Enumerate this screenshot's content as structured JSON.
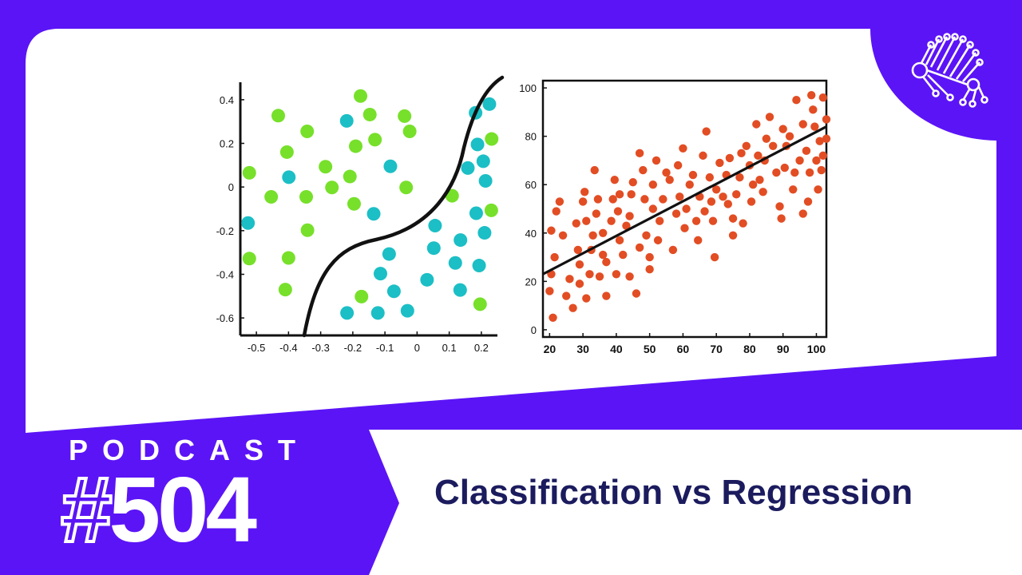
{
  "colors": {
    "brand_purple": "#5b14f6",
    "panel_white": "#ffffff",
    "title_navy": "#1b1b5e",
    "class_green": "#77e02a",
    "class_teal": "#1bbfc5",
    "regression_red": "#e24d24",
    "line_black": "#111111"
  },
  "branding": {
    "logo_icon": "neural-network-peacock-icon"
  },
  "podcast": {
    "label": "PODCAST",
    "hash": "#",
    "number": "504",
    "title": "Classification vs Regression"
  },
  "chart_data": [
    {
      "type": "scatter",
      "xlim": [
        -0.55,
        0.25
      ],
      "ylim": [
        -0.68,
        0.48
      ],
      "xticks": [
        "-0.5",
        "-0.4",
        "-0.3",
        "-0.2",
        "-0.1",
        "0",
        "0.1",
        "0.2"
      ],
      "yticks": [
        "0.4",
        "0.2",
        "0",
        "-0.2",
        "-0.4",
        "-0.6"
      ],
      "grid": false,
      "series": [
        {
          "color": "#77e02a",
          "points": [
            [
              -0.176,
              0.417
            ],
            [
              -0.147,
              0.332
            ],
            [
              -0.039,
              0.325
            ],
            [
              -0.432,
              0.327
            ],
            [
              -0.342,
              0.255
            ],
            [
              -0.023,
              0.255
            ],
            [
              -0.131,
              0.217
            ],
            [
              -0.191,
              0.187
            ],
            [
              -0.405,
              0.16
            ],
            [
              0.232,
              0.22
            ],
            [
              -0.522,
              0.065
            ],
            [
              -0.285,
              0.093
            ],
            [
              -0.209,
              0.048
            ],
            [
              -0.454,
              -0.045
            ],
            [
              -0.345,
              -0.045
            ],
            [
              -0.265,
              -0.002
            ],
            [
              -0.196,
              -0.077
            ],
            [
              -0.034,
              -0.002
            ],
            [
              0.109,
              -0.04
            ],
            [
              0.231,
              -0.107
            ],
            [
              -0.341,
              -0.198
            ],
            [
              -0.522,
              -0.328
            ],
            [
              -0.4,
              -0.325
            ],
            [
              -0.41,
              -0.47
            ],
            [
              -0.173,
              -0.502
            ],
            [
              0.196,
              -0.537
            ]
          ]
        },
        {
          "color": "#1bbfc5",
          "points": [
            [
              -0.219,
              0.303
            ],
            [
              -0.399,
              0.045
            ],
            [
              -0.083,
              0.095
            ],
            [
              -0.135,
              -0.123
            ],
            [
              0.182,
              0.34
            ],
            [
              0.225,
              0.38
            ],
            [
              0.188,
              0.195
            ],
            [
              0.206,
              0.118
            ],
            [
              0.158,
              0.087
            ],
            [
              0.213,
              0.028
            ],
            [
              -0.526,
              -0.165
            ],
            [
              0.184,
              -0.12
            ],
            [
              0.056,
              -0.177
            ],
            [
              -0.087,
              -0.307
            ],
            [
              0.135,
              -0.243
            ],
            [
              0.052,
              -0.28
            ],
            [
              0.21,
              -0.21
            ],
            [
              0.119,
              -0.348
            ],
            [
              0.193,
              -0.36
            ],
            [
              -0.114,
              -0.397
            ],
            [
              0.031,
              -0.425
            ],
            [
              -0.072,
              -0.478
            ],
            [
              0.134,
              -0.472
            ],
            [
              -0.218,
              -0.577
            ],
            [
              -0.122,
              -0.577
            ],
            [
              -0.03,
              -0.567
            ]
          ]
        }
      ]
    },
    {
      "type": "scatter",
      "xlim": [
        18,
        103
      ],
      "ylim": [
        -3,
        103
      ],
      "xticks": [
        20,
        30,
        40,
        50,
        60,
        70,
        80,
        90,
        100
      ],
      "yticks": [
        100,
        80,
        60,
        40,
        20,
        0
      ],
      "grid": false,
      "trend_line": [
        [
          18,
          23
        ],
        [
          103,
          84
        ]
      ],
      "series": [
        {
          "color": "#e24d24",
          "points": [
            [
              20.5,
              41
            ],
            [
              21.5,
              30
            ],
            [
              20.5,
              23
            ],
            [
              20,
              16
            ],
            [
              21,
              5
            ],
            [
              22,
              49
            ],
            [
              23,
              53
            ],
            [
              24,
              39
            ],
            [
              25,
              14
            ],
            [
              26,
              21
            ],
            [
              27,
              9
            ],
            [
              28,
              44
            ],
            [
              28.5,
              33
            ],
            [
              29,
              27
            ],
            [
              29,
              19
            ],
            [
              30,
              53
            ],
            [
              30.5,
              57
            ],
            [
              31,
              45
            ],
            [
              31,
              13
            ],
            [
              32,
              23
            ],
            [
              32.5,
              33
            ],
            [
              33,
              39
            ],
            [
              33.5,
              66
            ],
            [
              34,
              48
            ],
            [
              34.5,
              54
            ],
            [
              35,
              22
            ],
            [
              36,
              31
            ],
            [
              36,
              40
            ],
            [
              37,
              28
            ],
            [
              37,
              14
            ],
            [
              38.5,
              45
            ],
            [
              39,
              54
            ],
            [
              39.5,
              62
            ],
            [
              40,
              23
            ],
            [
              40.5,
              49
            ],
            [
              41,
              37
            ],
            [
              41,
              56
            ],
            [
              42,
              31
            ],
            [
              43,
              43
            ],
            [
              44,
              22
            ],
            [
              44,
              47
            ],
            [
              44.5,
              56
            ],
            [
              45,
              61
            ],
            [
              46,
              15
            ],
            [
              47,
              34
            ],
            [
              47,
              73
            ],
            [
              48,
              66
            ],
            [
              48.5,
              54
            ],
            [
              49,
              39
            ],
            [
              50,
              25
            ],
            [
              50,
              30
            ],
            [
              51,
              50
            ],
            [
              51,
              60
            ],
            [
              52,
              70
            ],
            [
              52.5,
              37
            ],
            [
              53,
              45
            ],
            [
              54,
              54
            ],
            [
              55,
              65
            ],
            [
              56,
              62
            ],
            [
              57,
              33
            ],
            [
              58,
              48
            ],
            [
              58.5,
              68
            ],
            [
              59,
              55
            ],
            [
              60,
              75
            ],
            [
              60.5,
              42
            ],
            [
              61,
              50
            ],
            [
              62,
              60
            ],
            [
              63,
              64
            ],
            [
              64,
              45
            ],
            [
              64.5,
              37
            ],
            [
              65,
              55
            ],
            [
              66,
              72
            ],
            [
              66.5,
              49
            ],
            [
              67,
              82
            ],
            [
              68,
              63
            ],
            [
              68.5,
              53
            ],
            [
              69,
              45
            ],
            [
              69.5,
              30
            ],
            [
              70,
              58
            ],
            [
              71,
              69
            ],
            [
              72,
              55
            ],
            [
              73,
              64
            ],
            [
              73.5,
              52
            ],
            [
              74,
              71
            ],
            [
              75,
              39
            ],
            [
              75,
              46
            ],
            [
              76,
              56
            ],
            [
              77,
              63
            ],
            [
              77.5,
              73
            ],
            [
              78,
              44
            ],
            [
              79,
              76
            ],
            [
              80,
              68
            ],
            [
              80.5,
              53
            ],
            [
              81,
              60
            ],
            [
              82,
              85
            ],
            [
              82.5,
              72
            ],
            [
              83,
              62
            ],
            [
              84,
              57
            ],
            [
              84.5,
              70
            ],
            [
              85,
              79
            ],
            [
              86,
              88
            ],
            [
              87,
              76
            ],
            [
              88,
              65
            ],
            [
              89,
              51
            ],
            [
              89.5,
              46
            ],
            [
              90,
              83
            ],
            [
              90.5,
              67
            ],
            [
              91,
              76
            ],
            [
              92,
              80
            ],
            [
              93,
              58
            ],
            [
              93.5,
              65
            ],
            [
              94,
              95
            ],
            [
              95,
              70
            ],
            [
              96,
              48
            ],
            [
              96,
              85
            ],
            [
              97,
              74
            ],
            [
              98,
              65
            ],
            [
              98.5,
              97
            ],
            [
              99,
              91
            ],
            [
              99.5,
              84
            ],
            [
              100,
              70
            ],
            [
              100.5,
              58
            ],
            [
              101,
              78
            ],
            [
              101.5,
              66
            ],
            [
              102,
              96
            ],
            [
              102,
              72
            ],
            [
              103,
              87
            ],
            [
              103,
              79
            ],
            [
              97.5,
              53
            ]
          ]
        }
      ]
    }
  ]
}
